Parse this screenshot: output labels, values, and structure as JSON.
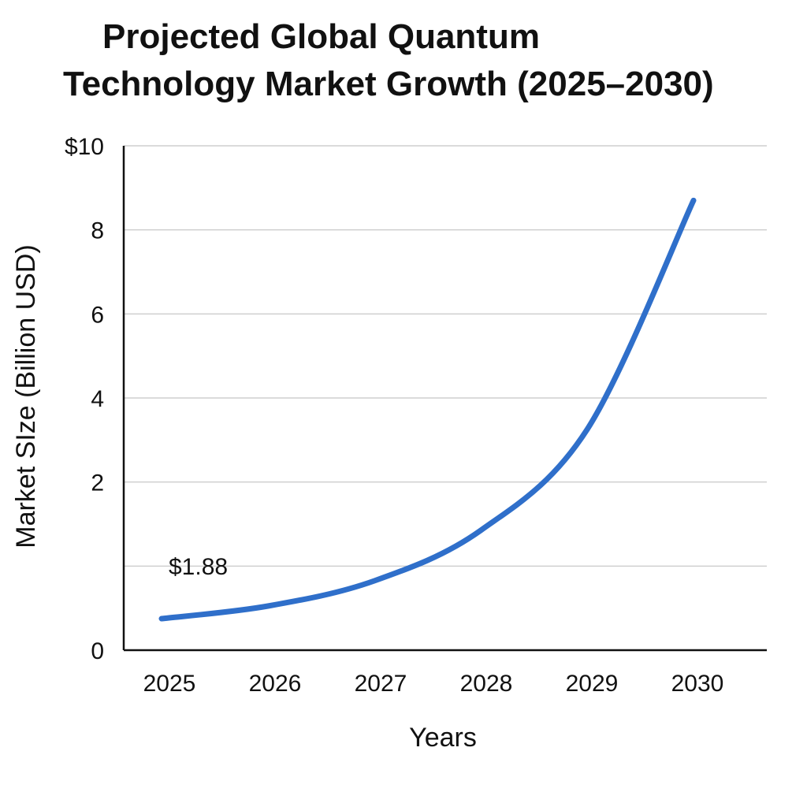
{
  "chart_data": {
    "type": "line",
    "title_line1": "Projected Global Quantum",
    "title_line2": "Technology Market Growth (2025–2030)",
    "xlabel": "Years",
    "ylabel": "Market SIze (Billion USD)",
    "x": [
      2025,
      2026,
      2027,
      2028,
      2029,
      2030
    ],
    "x_tick_labels": [
      "2025",
      "2026",
      "2027",
      "2028",
      "2029",
      "2030"
    ],
    "y_tick_labels": [
      "0",
      "",
      "2",
      "4",
      "6",
      "8",
      "$10"
    ],
    "ylim": [
      0,
      12
    ],
    "grid": true,
    "series": [
      {
        "values": [
          0.75,
          1.05,
          1.65,
          2.85,
          5.25,
          10.7
        ]
      }
    ],
    "annotation": {
      "text": "$1.88"
    },
    "colors": {
      "line": "#2f6fca",
      "grid": "#cfcfcf",
      "axis": "#111111"
    }
  }
}
